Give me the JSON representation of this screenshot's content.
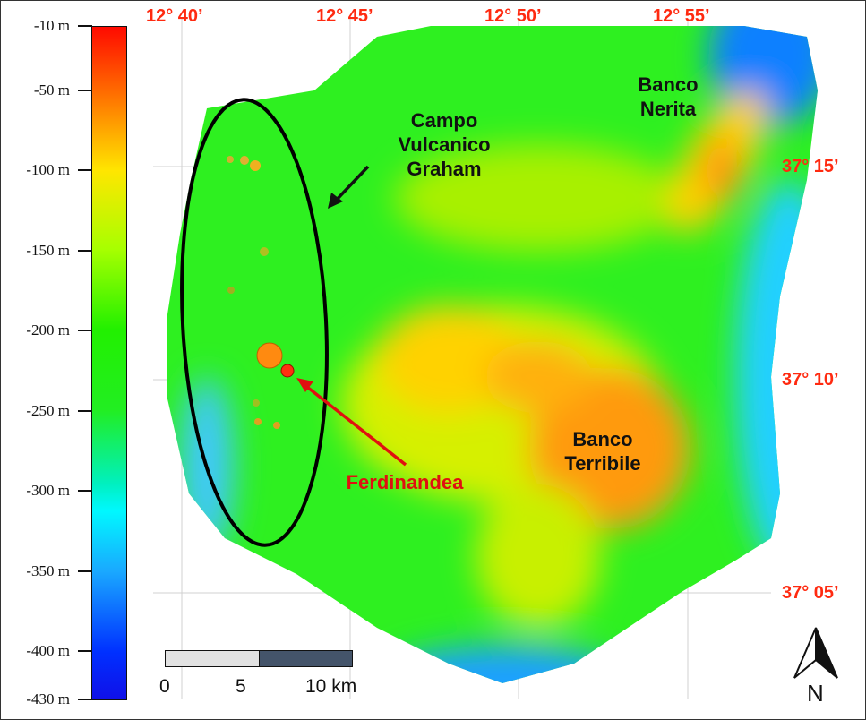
{
  "legend": {
    "ticks": [
      "-10 m",
      "-50 m",
      "-100 m",
      "-150 m",
      "-200 m",
      "-250 m",
      "-300 m",
      "-350 m",
      "-400 m",
      "-430 m"
    ],
    "colors": {
      "shallow": "#ff0a00",
      "mid": "#ffe600",
      "deep_mid": "#22f000",
      "deep": "#00f8ff",
      "deepest": "#1010e8"
    }
  },
  "longitudes": [
    "12° 40’",
    "12° 45’",
    "12° 50’",
    "12° 55’"
  ],
  "latitudes": [
    "37° 15’",
    "37° 10’",
    "37° 05’"
  ],
  "labels": {
    "campo": [
      "Campo",
      "Vulcanico",
      "Graham"
    ],
    "nerita": [
      "Banco",
      "Nerita"
    ],
    "terribile": [
      "Banco",
      "Terribile"
    ],
    "ferdinandea": "Ferdinandea"
  },
  "scale": {
    "labels": [
      "0",
      "5",
      "10 km"
    ]
  },
  "north": {
    "label": "N",
    "icon": "north-arrow-icon"
  },
  "accent_color": "#ff2a10"
}
